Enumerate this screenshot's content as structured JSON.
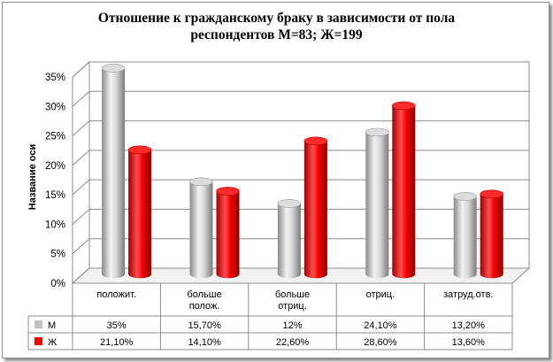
{
  "chart_data": {
    "type": "bar",
    "title": [
      "Отношение  к гражданскому браку в зависимости от пола",
      "респондентов  М=83; Ж=199"
    ],
    "ylabel": "Название оси",
    "xlabel": "",
    "ylim": [
      0,
      35
    ],
    "yticks": [
      0,
      5,
      10,
      15,
      20,
      25,
      30,
      35
    ],
    "ytick_labels": [
      "0%",
      "5%",
      "10%",
      "15%",
      "20%",
      "25%",
      "30%",
      "35%"
    ],
    "grid": true,
    "legend": "data-table",
    "categories": [
      [
        "положит."
      ],
      [
        "больше",
        "полож."
      ],
      [
        "больше",
        "отриц."
      ],
      [
        "отриц."
      ],
      [
        "затруд.отв."
      ]
    ],
    "series": [
      {
        "name": "М",
        "color": "#c0c0c0",
        "values": [
          35,
          15.7,
          12,
          24.1,
          13.2
        ],
        "labels": [
          "35%",
          "15,70%",
          "12%",
          "24,10%",
          "13,20%"
        ]
      },
      {
        "name": "Ж",
        "color": "#ff0000",
        "values": [
          21.1,
          14.1,
          22.6,
          28.6,
          13.6
        ],
        "labels": [
          "21,10%",
          "14,10%",
          "22,60%",
          "28,60%",
          "13,60%"
        ]
      }
    ]
  }
}
